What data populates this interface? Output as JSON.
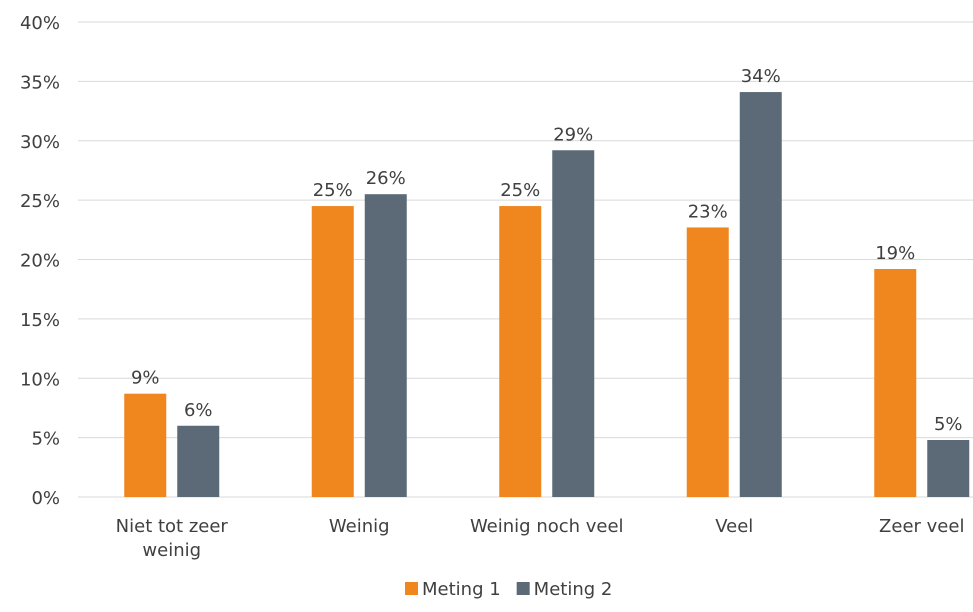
{
  "chart_data": {
    "type": "bar",
    "categories": [
      "Niet tot zeer weinig",
      "Weinig",
      "Weinig noch veel",
      "Veel",
      "Zeer veel"
    ],
    "category_lines": [
      [
        "Niet tot zeer",
        "weinig"
      ],
      [
        "Weinig"
      ],
      [
        "Weinig noch veel"
      ],
      [
        "Veel"
      ],
      [
        "Zeer veel"
      ]
    ],
    "series": [
      {
        "name": "Meting 1",
        "color": "#F0861E",
        "values": [
          8.7,
          24.5,
          24.5,
          22.7,
          19.2
        ],
        "labels": [
          "9%",
          "25%",
          "25%",
          "23%",
          "19%"
        ]
      },
      {
        "name": "Meting 2",
        "color": "#5C6A77",
        "values": [
          6.0,
          25.5,
          29.2,
          34.1,
          4.8
        ],
        "labels": [
          "6%",
          "26%",
          "29%",
          "34%",
          "5%"
        ]
      }
    ],
    "ylim": [
      0,
      40
    ],
    "yticks": [
      "0%",
      "5%",
      "10%",
      "15%",
      "20%",
      "25%",
      "30%",
      "35%",
      "40%"
    ],
    "ytick_values": [
      0,
      5,
      10,
      15,
      20,
      25,
      30,
      35,
      40
    ],
    "grid": true,
    "legend_position": "bottom",
    "title": "",
    "xlabel": "",
    "ylabel": ""
  }
}
